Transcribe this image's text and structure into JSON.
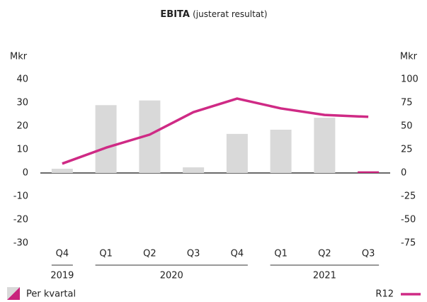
{
  "chart_data": {
    "type": "bar",
    "title": "EBITA",
    "subtitle": "(justerat resultat)",
    "y_label": "Mkr",
    "y2_label": "Mkr",
    "groups": [
      {
        "name": "2019",
        "categories": [
          "Q4"
        ]
      },
      {
        "name": "2020",
        "categories": [
          "Q1",
          "Q2",
          "Q3",
          "Q4"
        ]
      },
      {
        "name": "2021",
        "categories": [
          "Q1",
          "Q2",
          "Q3"
        ]
      }
    ],
    "series": [
      {
        "name": "Per kvartal",
        "type": "bar",
        "color": "#d9d9d9",
        "colors": [
          "#d9d9d9",
          "#d9d9d9",
          "#d9d9d9",
          "#d9d9d9",
          "#d9d9d9",
          "#d9d9d9",
          "#d9d9d9",
          "#c8237c"
        ],
        "values": [
          1.8,
          29,
          31,
          2.4,
          16.7,
          18.5,
          23.6,
          0.7
        ]
      },
      {
        "name": "R12",
        "type": "line",
        "axis": "y2",
        "color": "#cf2a85",
        "values": [
          10,
          27,
          41,
          65,
          79.5,
          69,
          62,
          60
        ]
      }
    ],
    "ylim": [
      -30,
      40
    ],
    "yticks": [
      40,
      30,
      20,
      10,
      0,
      -10,
      -20,
      -30
    ],
    "y2lim": [
      -75,
      100
    ],
    "y2ticks": [
      100,
      75,
      50,
      25,
      0,
      -25,
      -50,
      -75
    ],
    "legend": "bottom"
  }
}
